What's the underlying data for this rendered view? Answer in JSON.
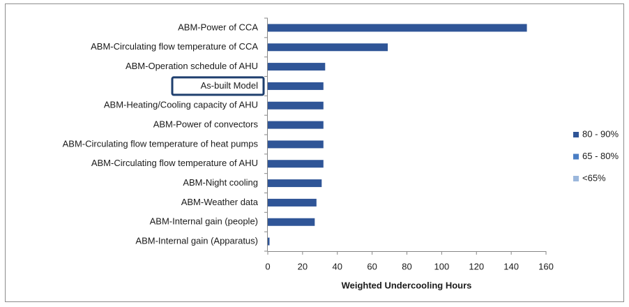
{
  "chart_data": {
    "type": "bar",
    "orientation": "horizontal",
    "x_label": "Weighted Undercooling Hours",
    "categories": [
      "ABM-Power of CCA",
      "ABM-Circulating flow temperature of CCA",
      "ABM-Operation schedule of AHU",
      "As-built Model",
      "ABM-Heating/Cooling capacity of AHU",
      "ABM-Power of convectors",
      "ABM-Circulating flow temperature of heat pumps",
      "ABM-Circulating flow temperature of AHU",
      "ABM-Night cooling",
      "ABM-Weather data",
      "ABM-Internal gain (people)",
      "ABM-Internal gain (Apparatus)"
    ],
    "series": [
      {
        "name": "80 - 90%",
        "color": "#2f5597",
        "values": [
          149,
          69,
          33,
          32,
          32,
          32,
          32,
          32,
          31,
          28,
          27,
          1
        ]
      },
      {
        "name": "65 - 80%",
        "color": "#4a7ec4",
        "values": [
          null,
          null,
          null,
          null,
          null,
          null,
          null,
          null,
          null,
          null,
          null,
          null
        ]
      },
      {
        "name": "<65%",
        "color": "#9bb7dc",
        "values": [
          null,
          null,
          null,
          null,
          null,
          null,
          null,
          null,
          null,
          null,
          null,
          null
        ]
      }
    ],
    "xlim": [
      0,
      160
    ],
    "xticks": [
      0,
      20,
      40,
      60,
      80,
      100,
      120,
      140,
      160
    ],
    "legend": "right"
  }
}
